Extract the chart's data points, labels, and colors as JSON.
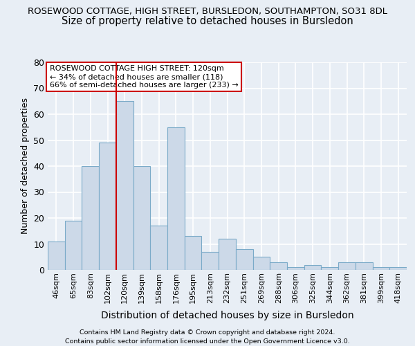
{
  "title": "ROSEWOOD COTTAGE, HIGH STREET, BURSLEDON, SOUTHAMPTON, SO31 8DL",
  "subtitle": "Size of property relative to detached houses in Bursledon",
  "xlabel": "Distribution of detached houses by size in Bursledon",
  "ylabel": "Number of detached properties",
  "categories": [
    "46sqm",
    "65sqm",
    "83sqm",
    "102sqm",
    "120sqm",
    "139sqm",
    "158sqm",
    "176sqm",
    "195sqm",
    "213sqm",
    "232sqm",
    "251sqm",
    "269sqm",
    "288sqm",
    "306sqm",
    "325sqm",
    "344sqm",
    "362sqm",
    "381sqm",
    "399sqm",
    "418sqm"
  ],
  "values": [
    11,
    19,
    40,
    49,
    65,
    40,
    17,
    55,
    13,
    7,
    12,
    8,
    5,
    3,
    1,
    2,
    1,
    3,
    3,
    1,
    1
  ],
  "bar_color": "#ccd9e8",
  "bar_edge_color": "#7aaac8",
  "highlight_index": 4,
  "highlight_color": "#cc0000",
  "ylim": [
    0,
    80
  ],
  "yticks": [
    0,
    10,
    20,
    30,
    40,
    50,
    60,
    70,
    80
  ],
  "annotation_box_text": "ROSEWOOD COTTAGE HIGH STREET: 120sqm\n← 34% of detached houses are smaller (118)\n66% of semi-detached houses are larger (233) →",
  "annotation_box_color": "#ffffff",
  "annotation_box_edge_color": "#cc0000",
  "footer_line1": "Contains HM Land Registry data © Crown copyright and database right 2024.",
  "footer_line2": "Contains public sector information licensed under the Open Government Licence v3.0.",
  "background_color": "#e8eef5",
  "grid_color": "#ffffff",
  "title_fontsize": 9.5,
  "subtitle_fontsize": 10.5
}
